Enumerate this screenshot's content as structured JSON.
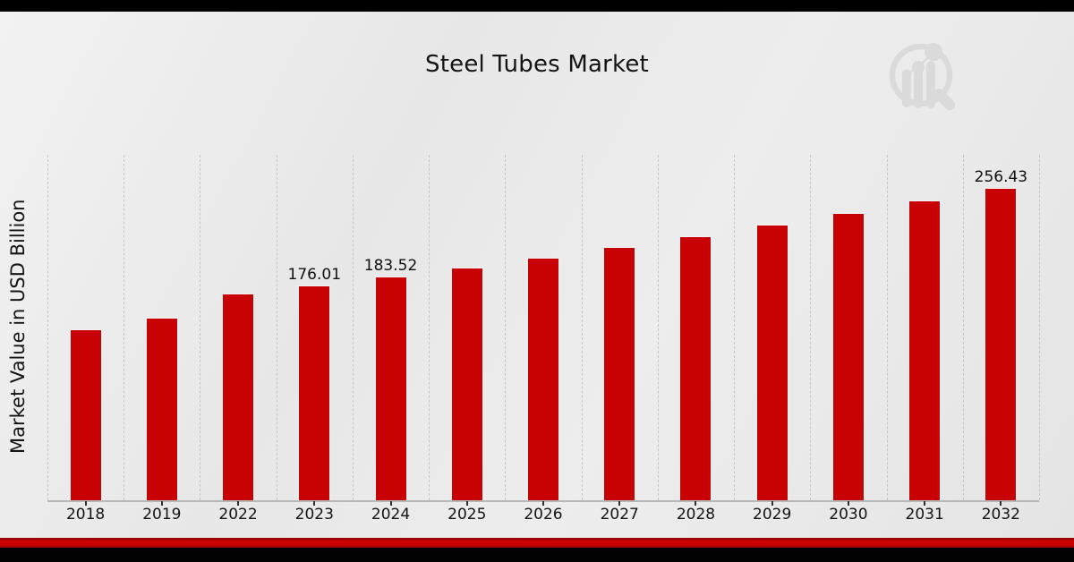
{
  "page": {
    "top_bar_color": "#000000",
    "background_color": "#e9e9e9",
    "bottom_stripe_color": "#c40000",
    "bottom_bar_color": "#000000",
    "watermark_icon": "magnifier-bar-chart-logo"
  },
  "chart_data": {
    "type": "bar",
    "title": "Steel Tubes Market",
    "xlabel": "",
    "ylabel": "Market Value in USD Billion",
    "categories": [
      "2018",
      "2019",
      "2022",
      "2023",
      "2024",
      "2025",
      "2026",
      "2027",
      "2028",
      "2029",
      "2030",
      "2031",
      "2032"
    ],
    "values": [
      140.0,
      149.7,
      169.5,
      176.01,
      183.52,
      191.4,
      199.5,
      208.1,
      217.0,
      226.2,
      235.9,
      246.0,
      256.43
    ],
    "bar_labels": [
      "",
      "",
      "",
      "176.01",
      "183.52",
      "",
      "",
      "",
      "",
      "",
      "",
      "",
      "256.43"
    ],
    "bar_color": "#c80202",
    "ylim": [
      0,
      283.6
    ],
    "grid": "vertical-dashed",
    "legend_position": "none"
  }
}
